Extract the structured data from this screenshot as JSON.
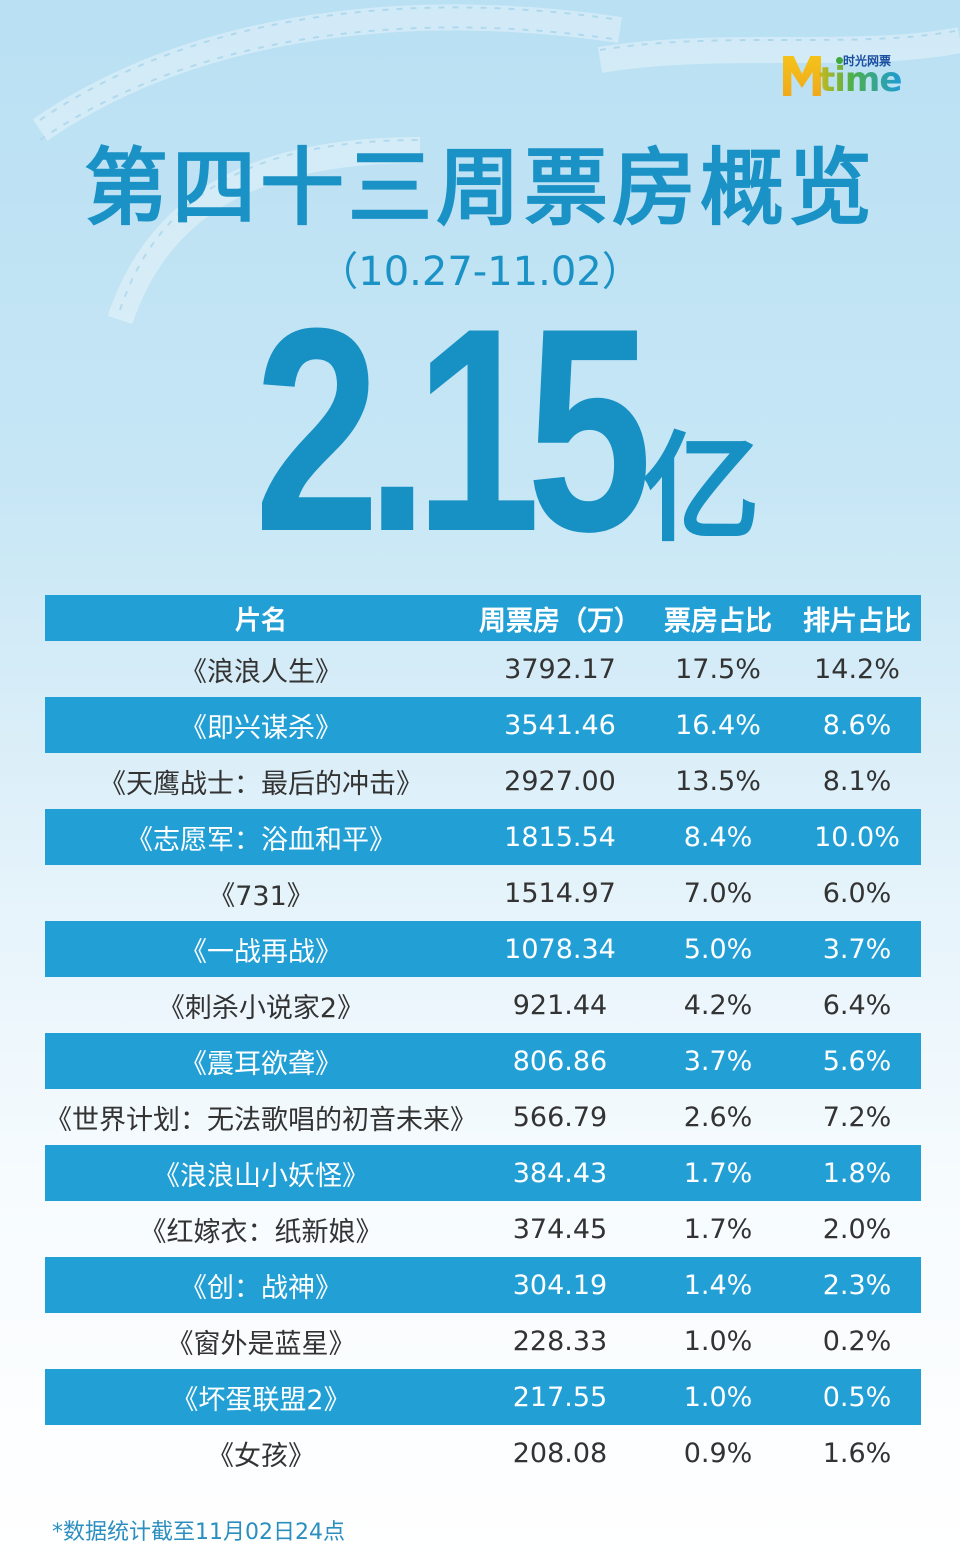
{
  "brand": {
    "logo_text": "time",
    "logo_cn": "时光网票",
    "logo_letter": "M"
  },
  "header": {
    "title": "第四十三周票房概览",
    "date_range": "（10.27-11.02）",
    "total_value": "2.15",
    "total_unit": "亿"
  },
  "table": {
    "headers": [
      "片名",
      "周票房（万）",
      "票房占比",
      "排片占比"
    ],
    "rows": [
      {
        "title": "《浪浪人生》",
        "box": "3792.17",
        "box_share": "17.5%",
        "screen_share": "14.2%"
      },
      {
        "title": "《即兴谋杀》",
        "box": "3541.46",
        "box_share": "16.4%",
        "screen_share": "8.6%"
      },
      {
        "title": "《天鹰战士：最后的冲击》",
        "box": "2927.00",
        "box_share": "13.5%",
        "screen_share": "8.1%"
      },
      {
        "title": "《志愿军：浴血和平》",
        "box": "1815.54",
        "box_share": "8.4%",
        "screen_share": "10.0%"
      },
      {
        "title": "《731》",
        "box": "1514.97",
        "box_share": "7.0%",
        "screen_share": "6.0%"
      },
      {
        "title": "《一战再战》",
        "box": "1078.34",
        "box_share": "5.0%",
        "screen_share": "3.7%"
      },
      {
        "title": "《刺杀小说家2》",
        "box": "921.44",
        "box_share": "4.2%",
        "screen_share": "6.4%"
      },
      {
        "title": "《震耳欲聋》",
        "box": "806.86",
        "box_share": "3.7%",
        "screen_share": "5.6%"
      },
      {
        "title": "《世界计划：无法歌唱的初音未来》",
        "box": "566.79",
        "box_share": "2.6%",
        "screen_share": "7.2%"
      },
      {
        "title": "《浪浪山小妖怪》",
        "box": "384.43",
        "box_share": "1.7%",
        "screen_share": "1.8%"
      },
      {
        "title": "《红嫁衣：纸新娘》",
        "box": "374.45",
        "box_share": "1.7%",
        "screen_share": "2.0%"
      },
      {
        "title": "《创：战神》",
        "box": "304.19",
        "box_share": "1.4%",
        "screen_share": "2.3%"
      },
      {
        "title": "《窗外是蓝星》",
        "box": "228.33",
        "box_share": "1.0%",
        "screen_share": "0.2%"
      },
      {
        "title": "《坏蛋联盟2》",
        "box": "217.55",
        "box_share": "1.0%",
        "screen_share": "0.5%"
      },
      {
        "title": "《女孩》",
        "box": "208.08",
        "box_share": "0.9%",
        "screen_share": "1.6%"
      }
    ]
  },
  "footnote": "*数据统计截至11月02日24点",
  "colors": {
    "accent": "#22a0d6",
    "title": "#1b92c6",
    "text": "#333333"
  },
  "chart_data": {
    "type": "table",
    "title": "第四十三周票房概览（10.27-11.02）",
    "subtitle": "总票房 2.15亿",
    "columns": [
      "片名",
      "周票房（万）",
      "票房占比",
      "排片占比"
    ],
    "categories": [
      "浪浪人生",
      "即兴谋杀",
      "天鹰战士：最后的冲击",
      "志愿军：浴血和平",
      "731",
      "一战再战",
      "刺杀小说家2",
      "震耳欲聋",
      "世界计划：无法歌唱的初音未来",
      "浪浪山小妖怪",
      "红嫁衣：纸新娘",
      "创：战神",
      "窗外是蓝星",
      "坏蛋联盟2",
      "女孩"
    ],
    "series": [
      {
        "name": "周票房（万）",
        "values": [
          3792.17,
          3541.46,
          2927.0,
          1815.54,
          1514.97,
          1078.34,
          921.44,
          806.86,
          566.79,
          384.43,
          374.45,
          304.19,
          228.33,
          217.55,
          208.08
        ]
      },
      {
        "name": "票房占比(%)",
        "values": [
          17.5,
          16.4,
          13.5,
          8.4,
          7.0,
          5.0,
          4.2,
          3.7,
          2.6,
          1.7,
          1.7,
          1.4,
          1.0,
          1.0,
          0.9
        ]
      },
      {
        "name": "排片占比(%)",
        "values": [
          14.2,
          8.6,
          8.1,
          10.0,
          6.0,
          3.7,
          6.4,
          5.6,
          7.2,
          1.8,
          2.0,
          2.3,
          0.2,
          0.5,
          1.6
        ]
      }
    ],
    "total": "2.15亿",
    "note": "*数据统计截至11月02日24点"
  }
}
